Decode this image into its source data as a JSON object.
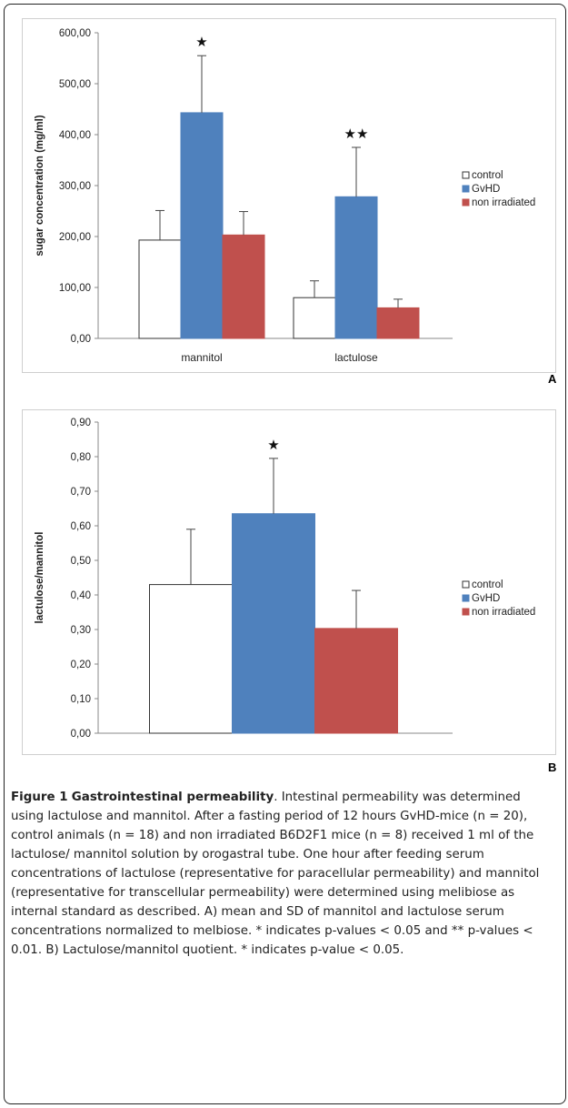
{
  "chart_data": [
    {
      "type": "bar",
      "panel_label": "A",
      "ylabel": "sugar concentration (mg/ml)",
      "ylim": [
        0,
        600
      ],
      "yticks": [
        "0,00",
        "100,00",
        "200,00",
        "300,00",
        "400,00",
        "500,00",
        "600,00"
      ],
      "categories": [
        "mannitol",
        "lactulose"
      ],
      "series": [
        {
          "name": "control",
          "color": "#ffffff",
          "values": [
            193,
            80
          ],
          "errors": [
            58,
            33
          ]
        },
        {
          "name": "GvHD",
          "color": "#4f81bd",
          "values": [
            443,
            278
          ],
          "errors": [
            112,
            97
          ]
        },
        {
          "name": "non irradiated",
          "color": "#c0504d",
          "values": [
            203,
            60
          ],
          "errors": [
            46,
            17
          ]
        }
      ],
      "annotations": [
        {
          "category": "mannitol",
          "series": "GvHD",
          "text": "★"
        },
        {
          "category": "lactulose",
          "series": "GvHD",
          "text": "★★"
        }
      ],
      "legend": "right"
    },
    {
      "type": "bar",
      "panel_label": "B",
      "ylabel": "lactulose/mannitol",
      "ylim": [
        0,
        0.9
      ],
      "yticks": [
        "0,00",
        "0,10",
        "0,20",
        "0,30",
        "0,40",
        "0,50",
        "0,60",
        "0,70",
        "0,80",
        "0,90"
      ],
      "categories": [
        ""
      ],
      "series": [
        {
          "name": "control",
          "color": "#ffffff",
          "values": [
            0.43
          ],
          "errors": [
            0.16
          ]
        },
        {
          "name": "GvHD",
          "color": "#4f81bd",
          "values": [
            0.635
          ],
          "errors": [
            0.16
          ]
        },
        {
          "name": "non irradiated",
          "color": "#c0504d",
          "values": [
            0.303
          ],
          "errors": [
            0.11
          ]
        }
      ],
      "annotations": [
        {
          "category": "",
          "series": "GvHD",
          "text": "★"
        }
      ],
      "legend": "right"
    }
  ],
  "caption": {
    "figure_number": "Figure 1",
    "title": "Gastrointestinal permeability",
    "text": ". Intestinal permeability was determined using lactulose and mannitol. After a fasting period of 12 hours GvHD-mice (n = 20), control animals (n = 18) and non irradiated B6D2F1 mice (n = 8) received 1 ml of the lactulose/ mannitol solution by orogastral tube. One hour after feeding serum concentrations of lactulose (representative for paracellular permeability) and mannitol (representative for transcellular permeability) were determined using melibiose as internal standard as described. A) mean and SD of mannitol and lactulose serum concentrations normalized to melbiose. * indicates p-values < 0.05 and ** p-values < 0.01. B) Lactulose/mannitol quotient. * indicates p-value < 0.05."
  }
}
